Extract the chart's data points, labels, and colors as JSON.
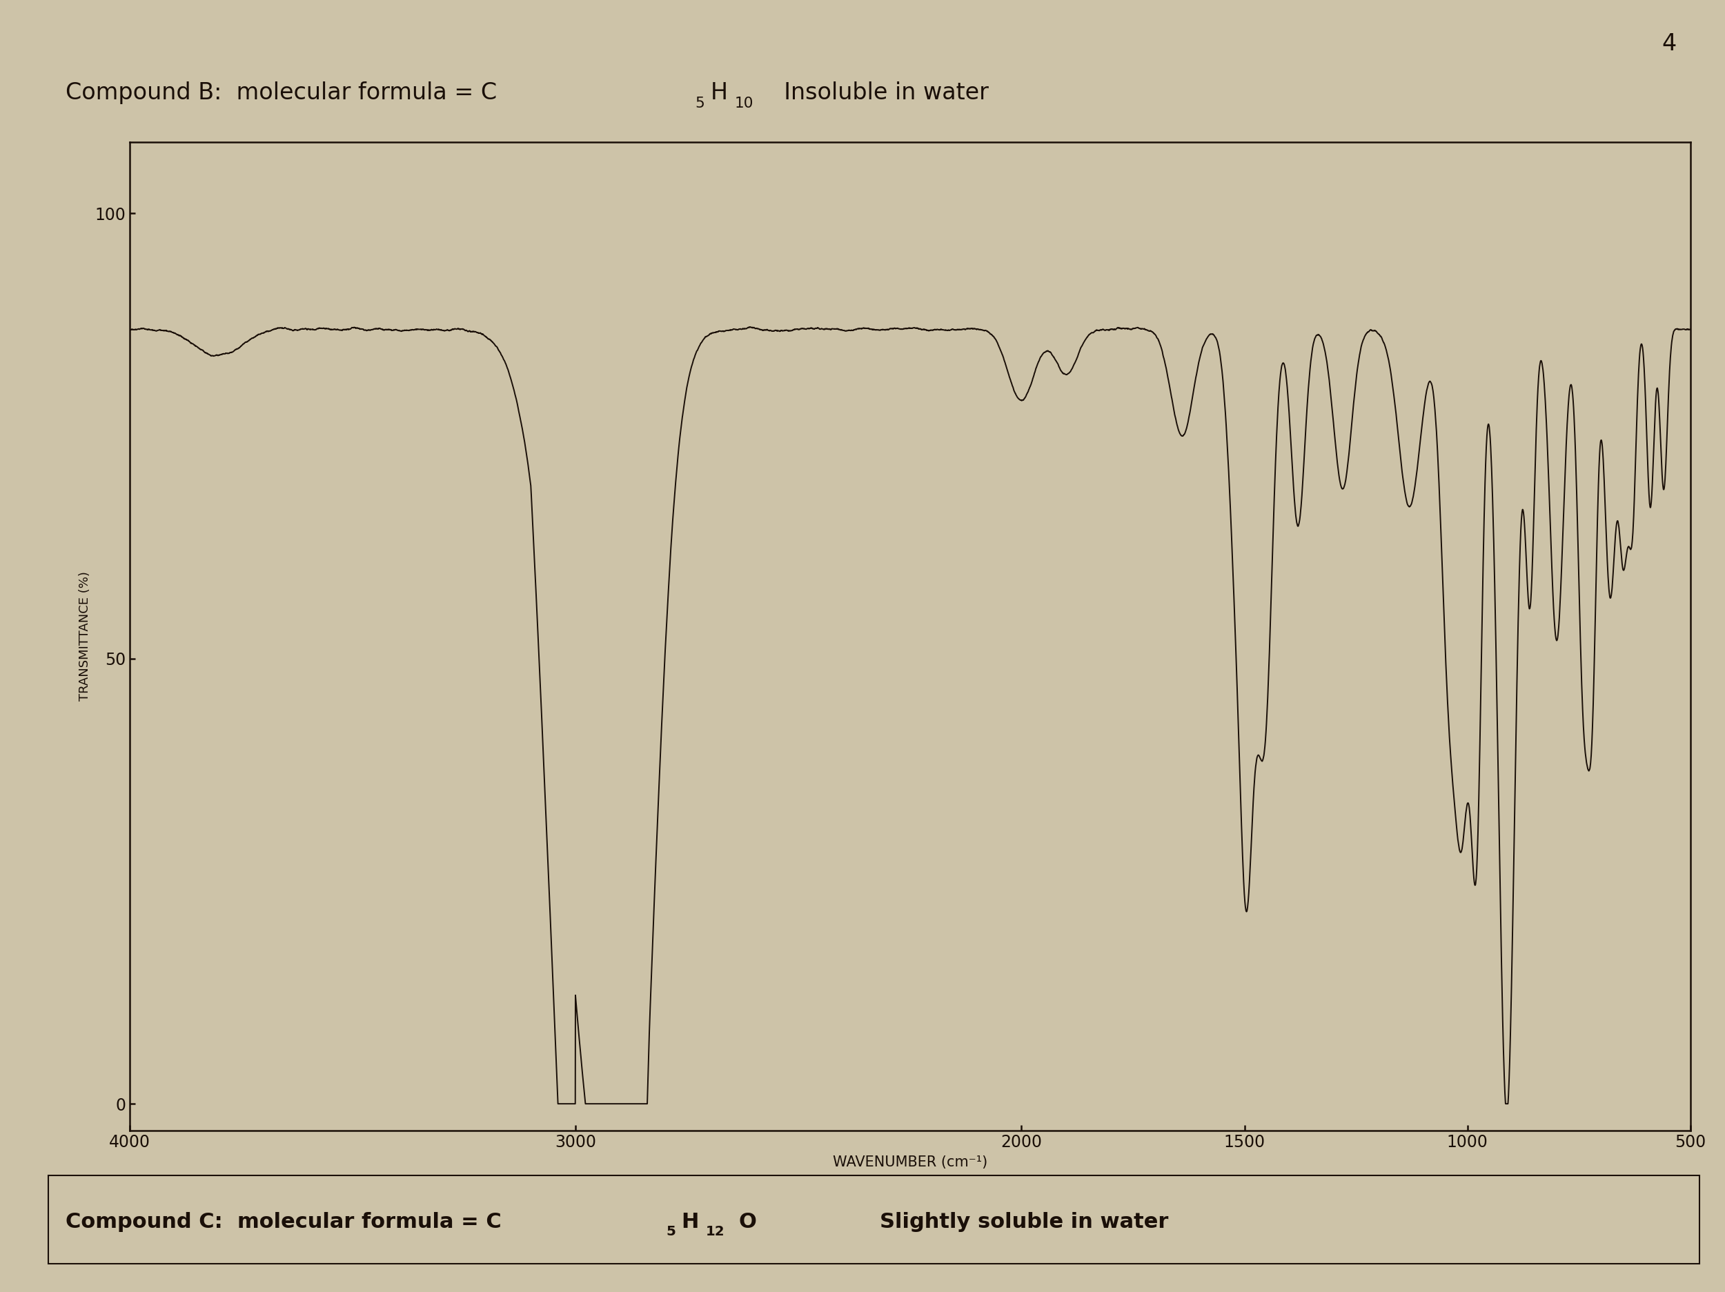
{
  "background_color": "#cdc3a8",
  "page_number": "4",
  "line_color": "#1a0f08",
  "text_color": "#1a0f08",
  "box_color": "#1a0f08",
  "ylabel": "TRANSMITTANCE (%)",
  "xlabel": "WAVENUMBER (cm-1)",
  "xmin": 4000,
  "xmax": 500,
  "ymin": 0,
  "ymax": 100,
  "ytick_labels": [
    "0",
    "50",
    "100"
  ],
  "ytick_vals": [
    0,
    50,
    100
  ],
  "xtick_labels": [
    "4000",
    "3000",
    "2000",
    "1500",
    "1000",
    "500"
  ],
  "xtick_vals": [
    4000,
    3000,
    2000,
    1500,
    1000,
    500
  ]
}
